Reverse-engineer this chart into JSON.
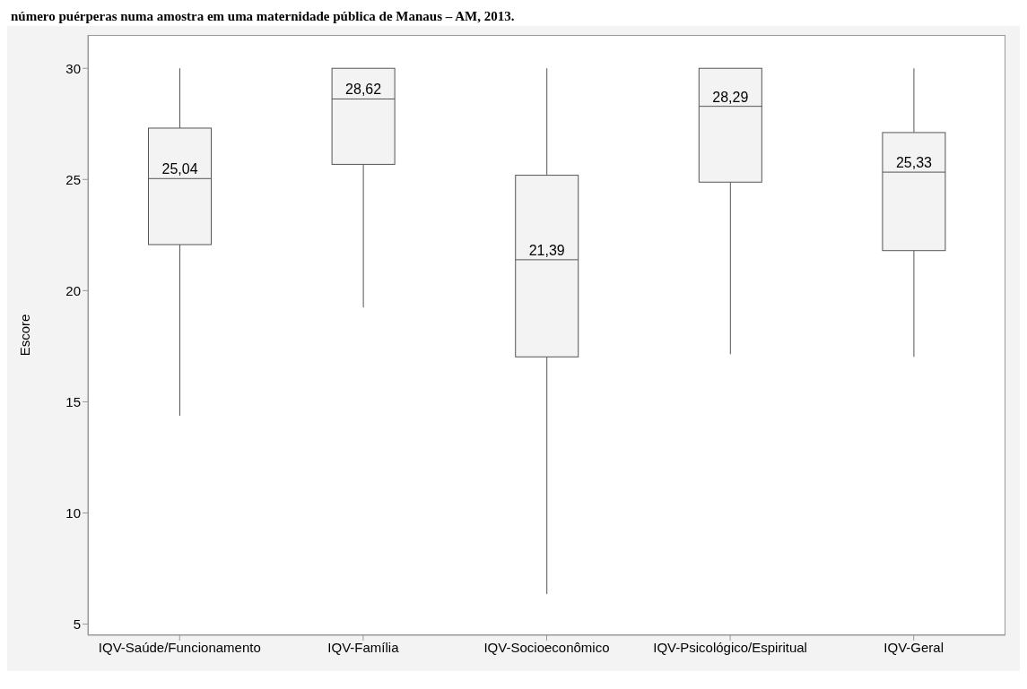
{
  "chart_data": {
    "type": "box",
    "title": "número puérperas numa amostra em uma maternidade pública de Manaus – AM, 2013.",
    "ylabel": "Escore",
    "categories": [
      "IQV-Saúde/Funcionamento",
      "IQV-Família",
      "IQV-Socioeconômico",
      "IQV-Psicológico/Espiritual",
      "IQV-Geral"
    ],
    "boxes": [
      {
        "low": 14.37,
        "q1": 22.07,
        "median": 25.04,
        "q3": 27.31,
        "high": 30
      },
      {
        "low": 19.24,
        "q1": 25.68,
        "median": 28.62,
        "q3": 30,
        "high": 30
      },
      {
        "low": 6.35,
        "q1": 17.02,
        "median": 21.39,
        "q3": 25.19,
        "high": 30
      },
      {
        "low": 17.14,
        "q1": 24.88,
        "median": 28.29,
        "q3": 30,
        "high": 30
      },
      {
        "low": 17.02,
        "q1": 21.8,
        "median": 25.33,
        "q3": 27.11,
        "high": 30
      }
    ],
    "annotations": [
      {
        "text": "25,04",
        "x": "IQV-Saúde/Funcionamento",
        "y": 25.04
      },
      {
        "text": "28,62",
        "x": "IQV-Família",
        "y": 28.62
      },
      {
        "text": "21,39",
        "x": "IQV-Socioeconômico",
        "y": 21.39
      },
      {
        "text": "28,29",
        "x": "IQV-Psicológico/Espiritual",
        "y": 28.29
      },
      {
        "text": "25,33",
        "x": "IQV-Geral",
        "y": 25.33
      }
    ],
    "color": "#f3f3f3",
    "ylim": [
      4.5,
      31.5
    ],
    "yticks": [
      5,
      10,
      15,
      20,
      25,
      30
    ]
  }
}
